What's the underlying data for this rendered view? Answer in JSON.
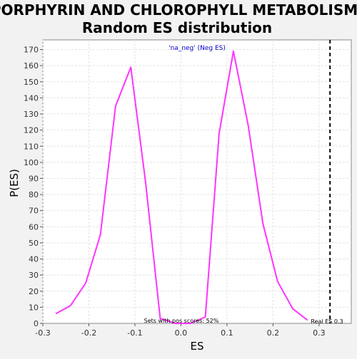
{
  "chart_data": {
    "type": "line",
    "title_lines": [
      "PORPHYRIN AND CHLOROPHYLL METABOLISM:",
      "Random ES distribution"
    ],
    "xlabel": "ES",
    "ylabel": "P(ES)",
    "xlim": [
      -0.3,
      0.37
    ],
    "ylim": [
      0,
      176
    ],
    "xticks": [
      -0.3,
      -0.2,
      -0.1,
      0.0,
      0.1,
      0.2,
      0.3
    ],
    "xtick_labels": [
      "-0.3",
      "-0.2",
      "-0.1",
      "0.0",
      "0.1",
      "0.2",
      "0.3"
    ],
    "yticks": [
      0,
      10,
      20,
      30,
      40,
      50,
      60,
      70,
      80,
      90,
      100,
      110,
      120,
      130,
      140,
      150,
      160,
      170
    ],
    "grid": true,
    "series": [
      {
        "name": "'na_neg' (Neg ES)",
        "color": "#ff33ff",
        "x": [
          -0.272,
          -0.24,
          -0.207,
          -0.175,
          -0.142,
          -0.109,
          -0.077,
          -0.045,
          -0.012,
          0.021,
          0.053,
          0.083,
          0.114,
          0.146,
          0.178,
          0.21,
          0.243,
          0.275
        ],
        "y": [
          6,
          11,
          25,
          55,
          135,
          159,
          88,
          3,
          0,
          0,
          4,
          118,
          169,
          123,
          62,
          26,
          9,
          2
        ]
      }
    ],
    "legend": {
      "text": "'na_neg' (Neg ES)",
      "placement": "top-center",
      "color": "#0000cc"
    },
    "real_es": {
      "value": 0.3238,
      "label": "Real ES 0.3",
      "style": "dashed",
      "color": "#000000"
    },
    "annotation": "Sets with pos scores: 52%",
    "colors": {
      "plot_bg": "#ffffff",
      "page_bg": "#f2f2f2",
      "grid": "#e4e4e4"
    }
  }
}
